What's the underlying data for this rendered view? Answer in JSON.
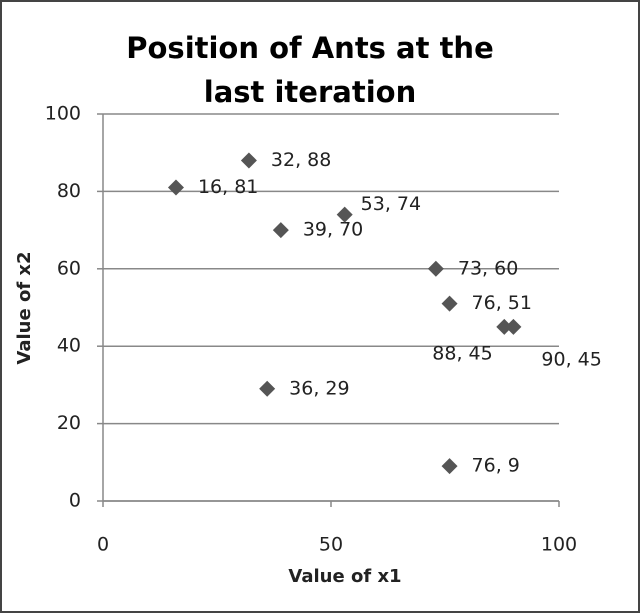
{
  "chart_data": {
    "type": "scatter",
    "title": "Position of Ants at the last iteration",
    "x_label": "Value of x1",
    "y_label": "Value of x2",
    "x": [
      16,
      32,
      39,
      53,
      73,
      76,
      88,
      90,
      36,
      76
    ],
    "values": [
      81,
      88,
      70,
      74,
      60,
      51,
      45,
      45,
      29,
      9
    ],
    "value_labels": [
      "16, 81",
      "32, 88",
      "39, 70",
      "53, 74",
      "73, 60",
      "76, 51",
      "88, 45",
      "90, 45",
      "36, 29",
      "76, 9"
    ],
    "color": "#555555",
    "xlim": [
      0,
      100
    ],
    "xticks": [
      0,
      50,
      100
    ],
    "ylim": [
      0,
      100
    ],
    "yticks": [
      0,
      20,
      40,
      60,
      80,
      100
    ],
    "grid": true
  }
}
